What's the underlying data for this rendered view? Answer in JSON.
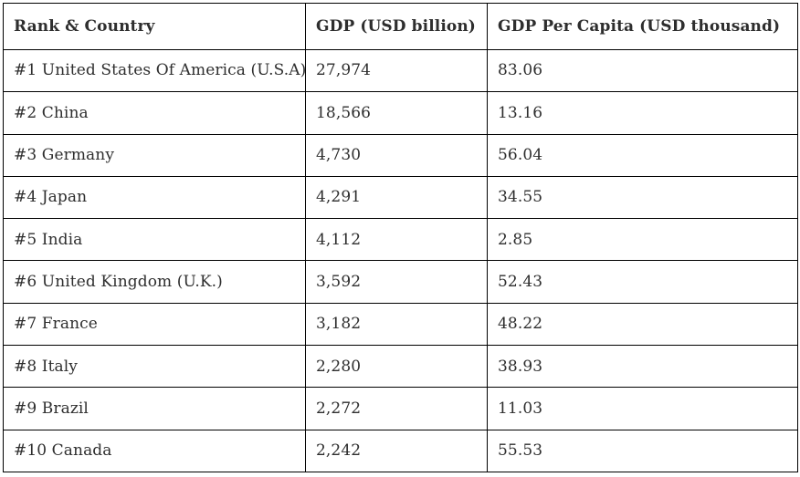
{
  "chart_data": {
    "type": "table",
    "title": "",
    "columns": [
      "Rank & Country",
      "GDP (USD billion)",
      "GDP Per Capita (USD thousand)"
    ],
    "rows": [
      {
        "rank": 1,
        "label": "#1 United States Of America (U.S.A)",
        "gdp_usd_billion": "27,974",
        "gdp_per_capita_usd_thousand": "83.06",
        "gdp_numeric": 27974,
        "per_capita_numeric": 83.06
      },
      {
        "rank": 2,
        "label": "#2 China",
        "gdp_usd_billion": "18,566",
        "gdp_per_capita_usd_thousand": "13.16",
        "gdp_numeric": 18566,
        "per_capita_numeric": 13.16
      },
      {
        "rank": 3,
        "label": "#3 Germany",
        "gdp_usd_billion": "4,730",
        "gdp_per_capita_usd_thousand": "56.04",
        "gdp_numeric": 4730,
        "per_capita_numeric": 56.04
      },
      {
        "rank": 4,
        "label": "#4 Japan",
        "gdp_usd_billion": "4,291",
        "gdp_per_capita_usd_thousand": "34.55",
        "gdp_numeric": 4291,
        "per_capita_numeric": 34.55
      },
      {
        "rank": 5,
        "label": "#5 India",
        "gdp_usd_billion": "4,112",
        "gdp_per_capita_usd_thousand": "2.85",
        "gdp_numeric": 4112,
        "per_capita_numeric": 2.85
      },
      {
        "rank": 6,
        "label": "#6 United Kingdom (U.K.)",
        "gdp_usd_billion": "3,592",
        "gdp_per_capita_usd_thousand": "52.43",
        "gdp_numeric": 3592,
        "per_capita_numeric": 52.43
      },
      {
        "rank": 7,
        "label": "#7 France",
        "gdp_usd_billion": "3,182",
        "gdp_per_capita_usd_thousand": "48.22",
        "gdp_numeric": 3182,
        "per_capita_numeric": 48.22
      },
      {
        "rank": 8,
        "label": "#8 Italy",
        "gdp_usd_billion": "2,280",
        "gdp_per_capita_usd_thousand": "38.93",
        "gdp_numeric": 2280,
        "per_capita_numeric": 38.93
      },
      {
        "rank": 9,
        "label": "#9 Brazil",
        "gdp_usd_billion": "2,272",
        "gdp_per_capita_usd_thousand": "11.03",
        "gdp_numeric": 2272,
        "per_capita_numeric": 11.03
      },
      {
        "rank": 10,
        "label": "#10 Canada",
        "gdp_usd_billion": "2,242",
        "gdp_per_capita_usd_thousand": "55.53",
        "gdp_numeric": 2242,
        "per_capita_numeric": 55.53
      }
    ],
    "layout": {
      "grid": "all-borders",
      "header_bold": true
    }
  },
  "colors": {
    "border": "#000000",
    "text": "#2e2e2e",
    "background": "#ffffff"
  }
}
